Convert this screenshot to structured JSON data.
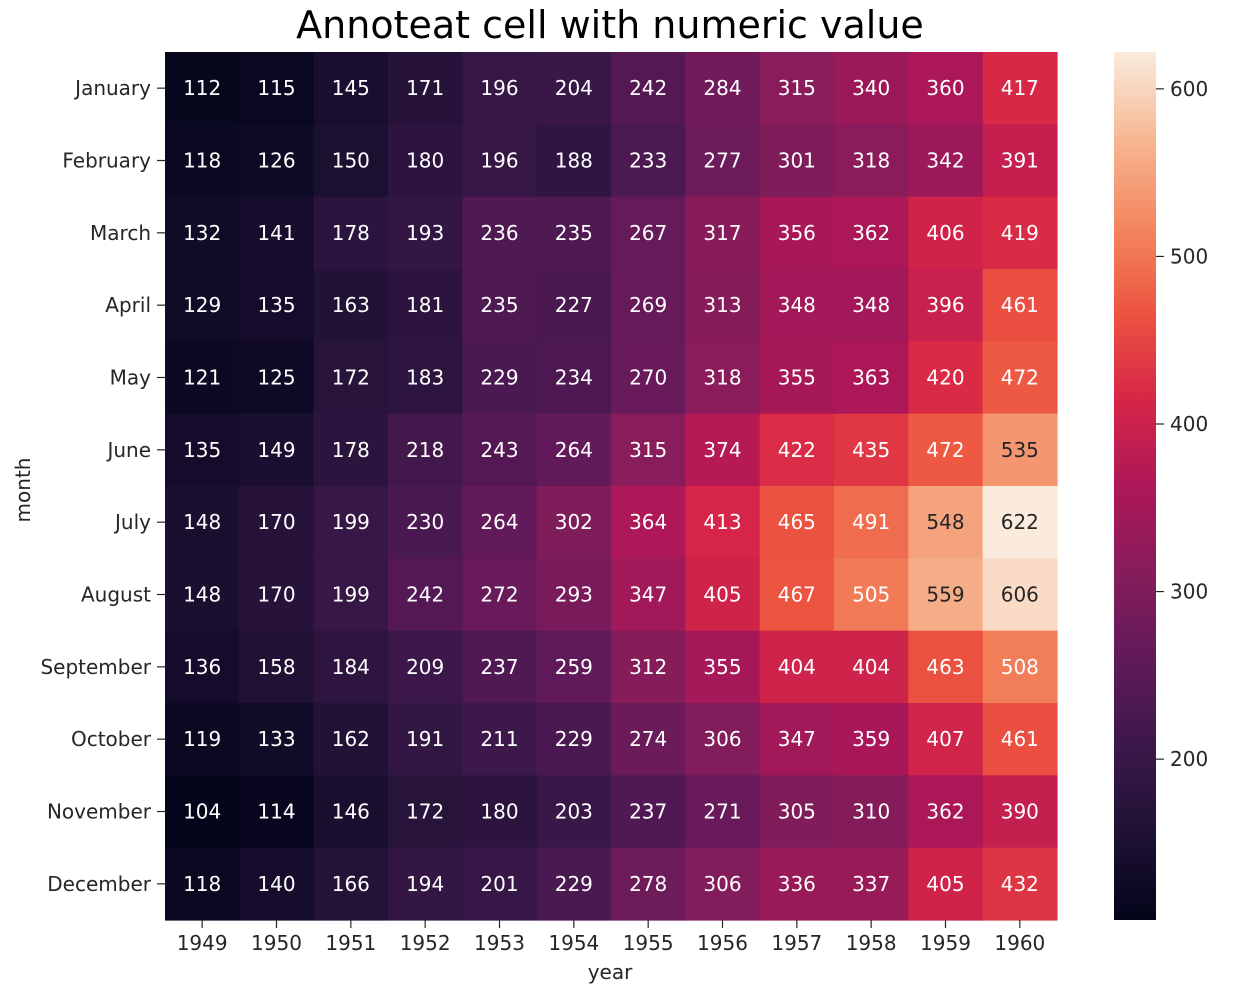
{
  "chart_data": {
    "type": "heatmap",
    "title": "Annoteat cell with numeric value",
    "xlabel": "year",
    "ylabel": "month",
    "x": [
      "1949",
      "1950",
      "1951",
      "1952",
      "1953",
      "1954",
      "1955",
      "1956",
      "1957",
      "1958",
      "1959",
      "1960"
    ],
    "y": [
      "January",
      "February",
      "March",
      "April",
      "May",
      "June",
      "July",
      "August",
      "September",
      "October",
      "November",
      "December"
    ],
    "values": [
      [
        112,
        115,
        145,
        171,
        196,
        204,
        242,
        284,
        315,
        340,
        360,
        417
      ],
      [
        118,
        126,
        150,
        180,
        196,
        188,
        233,
        277,
        301,
        318,
        342,
        391
      ],
      [
        132,
        141,
        178,
        193,
        236,
        235,
        267,
        317,
        356,
        362,
        406,
        419
      ],
      [
        129,
        135,
        163,
        181,
        235,
        227,
        269,
        313,
        348,
        348,
        396,
        461
      ],
      [
        121,
        125,
        172,
        183,
        229,
        234,
        270,
        318,
        355,
        363,
        420,
        472
      ],
      [
        135,
        149,
        178,
        218,
        243,
        264,
        315,
        374,
        422,
        435,
        472,
        535
      ],
      [
        148,
        170,
        199,
        230,
        264,
        302,
        364,
        413,
        465,
        491,
        548,
        622
      ],
      [
        148,
        170,
        199,
        242,
        272,
        293,
        347,
        405,
        467,
        505,
        559,
        606
      ],
      [
        136,
        158,
        184,
        209,
        237,
        259,
        312,
        355,
        404,
        404,
        463,
        508
      ],
      [
        119,
        133,
        162,
        191,
        211,
        229,
        274,
        306,
        347,
        359,
        407,
        461
      ],
      [
        104,
        114,
        146,
        172,
        180,
        203,
        237,
        271,
        305,
        310,
        362,
        390
      ],
      [
        118,
        140,
        166,
        194,
        201,
        229,
        278,
        306,
        336,
        337,
        405,
        432
      ]
    ],
    "vmin": 104,
    "vmax": 622,
    "colormap": "rocket",
    "annotated": true,
    "grid": false,
    "colorbar": {
      "position": "right",
      "ticks": [
        200,
        300,
        400,
        500,
        600
      ]
    }
  }
}
